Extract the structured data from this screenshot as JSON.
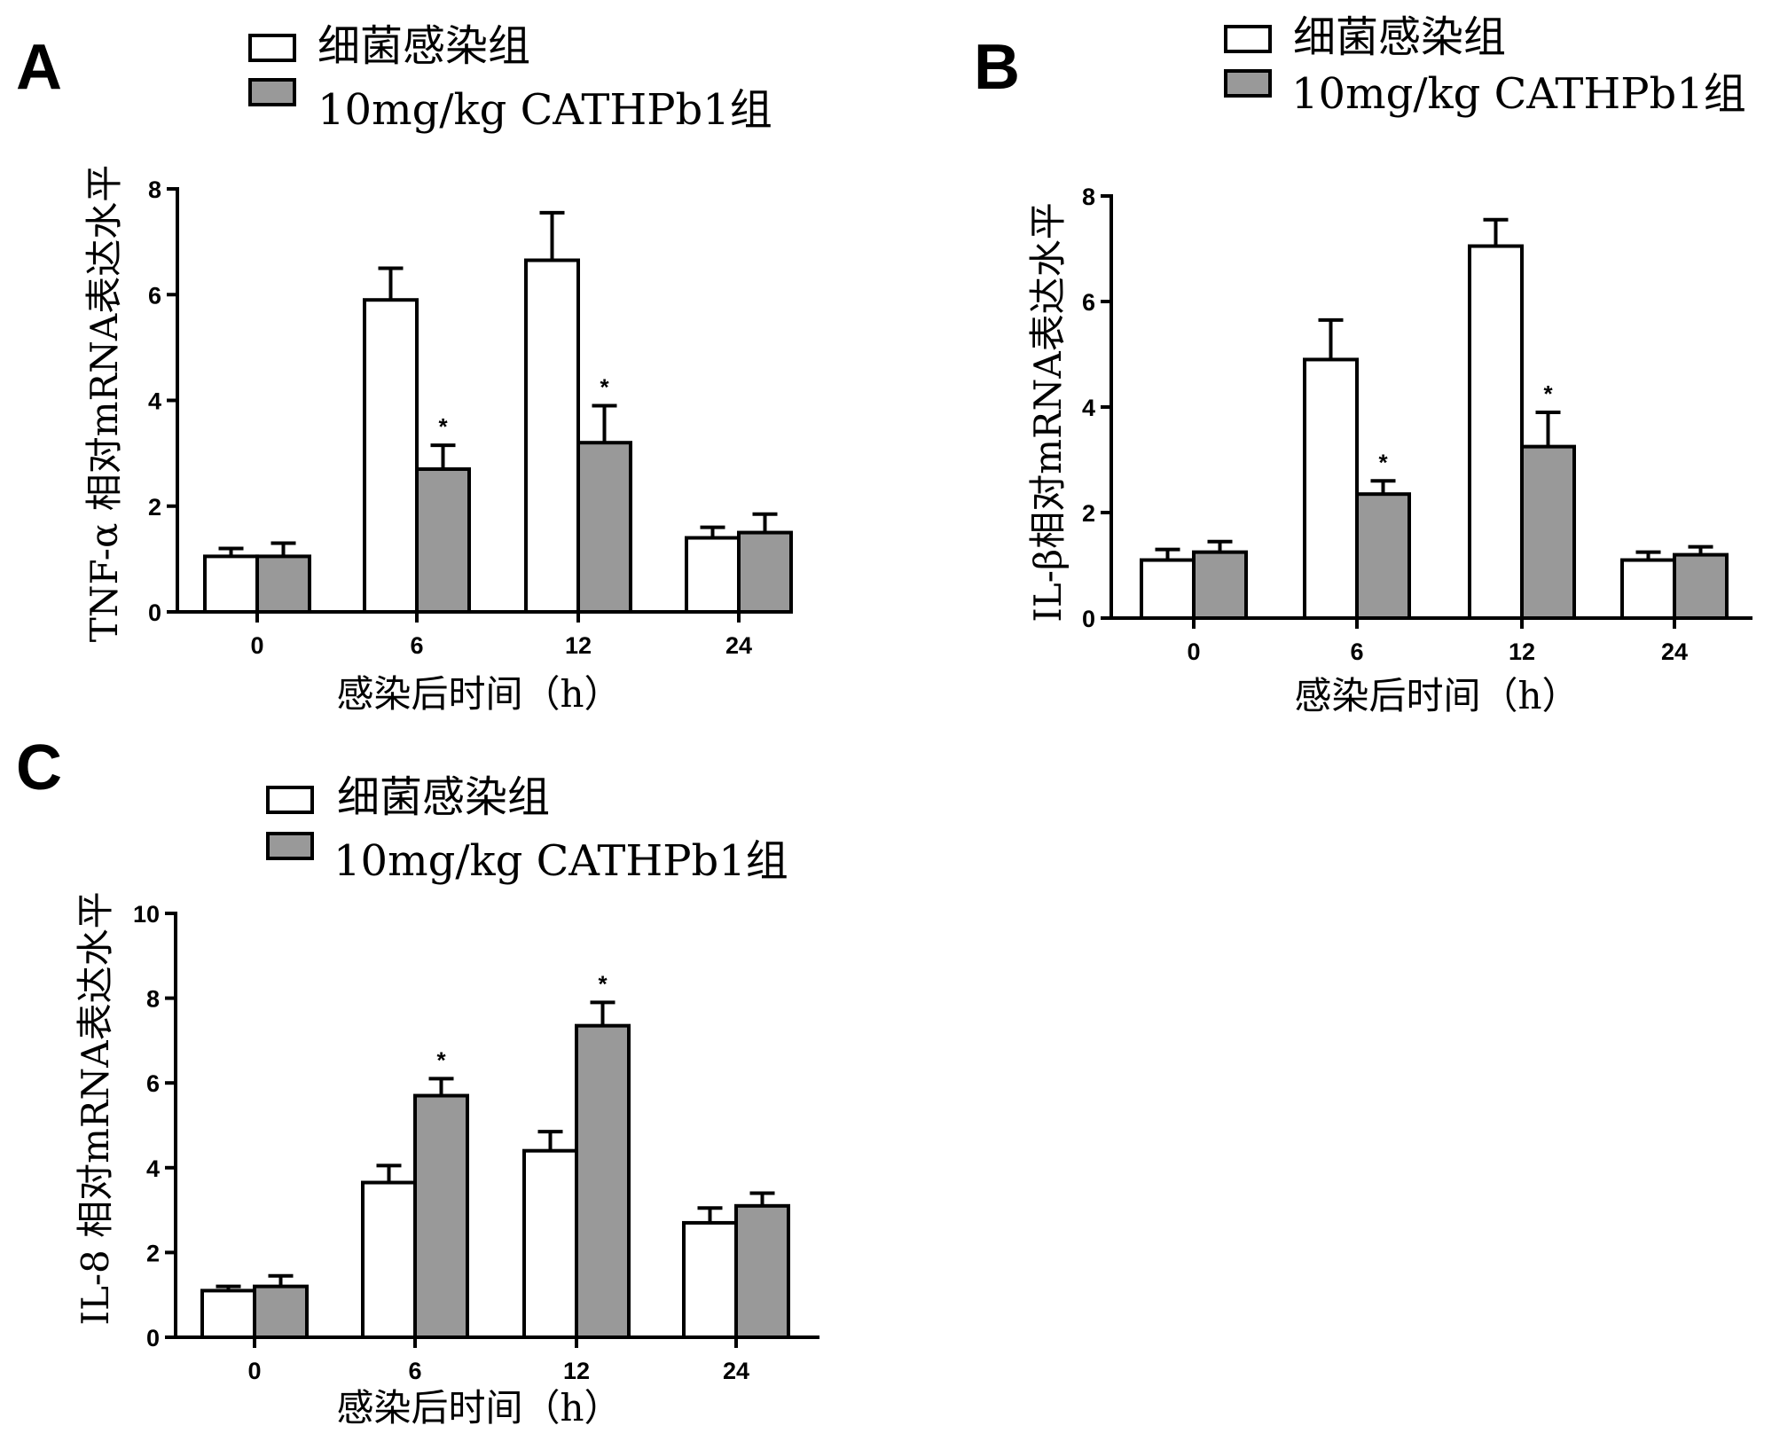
{
  "chart_data": [
    {
      "panel": "A",
      "type": "bar",
      "ylabel": "TNF-α 相对mRNA表达水平",
      "xlabel": "感染后时间（h）",
      "categories": [
        "0",
        "6",
        "12",
        "24"
      ],
      "ylim": [
        0,
        8
      ],
      "yticks": [
        0,
        2,
        4,
        6,
        8
      ],
      "series": [
        {
          "name": "细菌感染组",
          "values": [
            1.05,
            5.9,
            6.65,
            1.4
          ],
          "errors": [
            0.15,
            0.6,
            0.9,
            0.2
          ],
          "color": "#ffffff"
        },
        {
          "name": "10mg/kg CATHPb1组",
          "values": [
            1.05,
            2.7,
            3.2,
            1.5
          ],
          "errors": [
            0.25,
            0.45,
            0.7,
            0.35
          ],
          "color": "#999999"
        }
      ],
      "significance": [
        {
          "category": "6",
          "series": "10mg/kg CATHPb1组",
          "label": "*"
        },
        {
          "category": "12",
          "series": "10mg/kg CATHPb1组",
          "label": "*"
        }
      ]
    },
    {
      "panel": "B",
      "type": "bar",
      "ylabel": "IL-β相对mRNA表达水平",
      "xlabel": "感染后时间（h）",
      "categories": [
        "0",
        "6",
        "12",
        "24"
      ],
      "ylim": [
        0,
        8
      ],
      "yticks": [
        0,
        2,
        4,
        6,
        8
      ],
      "series": [
        {
          "name": "细菌感染组",
          "values": [
            1.1,
            4.9,
            7.05,
            1.1
          ],
          "errors": [
            0.2,
            0.75,
            0.5,
            0.15
          ],
          "color": "#ffffff"
        },
        {
          "name": "10mg/kg CATHPb1组",
          "values": [
            1.25,
            2.35,
            3.25,
            1.2
          ],
          "errors": [
            0.2,
            0.25,
            0.65,
            0.15
          ],
          "color": "#999999"
        }
      ],
      "significance": [
        {
          "category": "6",
          "series": "10mg/kg CATHPb1组",
          "label": "*"
        },
        {
          "category": "12",
          "series": "10mg/kg CATHPb1组",
          "label": "*"
        }
      ]
    },
    {
      "panel": "C",
      "type": "bar",
      "ylabel": "IL-8 相对mRNA表达水平",
      "xlabel": "感染后时间（h）",
      "categories": [
        "0",
        "6",
        "12",
        "24"
      ],
      "ylim": [
        0,
        10
      ],
      "yticks": [
        0,
        2,
        4,
        6,
        8,
        10
      ],
      "series": [
        {
          "name": "细菌感染组",
          "values": [
            1.1,
            3.65,
            4.4,
            2.7
          ],
          "errors": [
            0.1,
            0.4,
            0.45,
            0.35
          ],
          "color": "#ffffff"
        },
        {
          "name": "10mg/kg CATHPb1组",
          "values": [
            1.2,
            5.7,
            7.35,
            3.1
          ],
          "errors": [
            0.25,
            0.4,
            0.55,
            0.3
          ],
          "color": "#999999"
        }
      ],
      "significance": [
        {
          "category": "6",
          "series": "10mg/kg CATHPb1组",
          "label": "*"
        },
        {
          "category": "12",
          "series": "10mg/kg CATHPb1组",
          "label": "*"
        }
      ]
    }
  ]
}
